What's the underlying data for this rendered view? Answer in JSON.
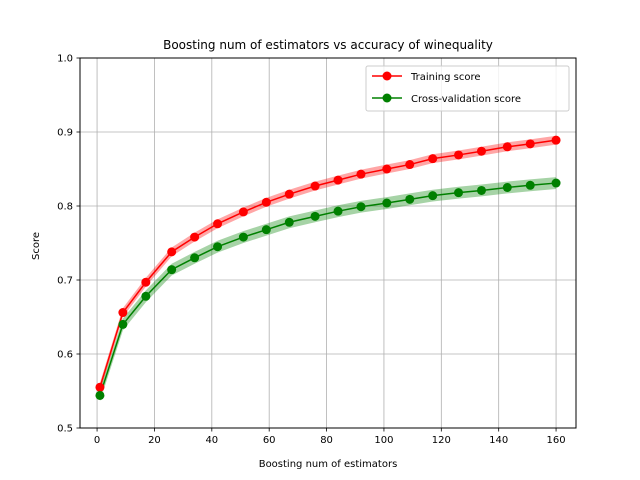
{
  "chart_data": {
    "type": "line",
    "title": "Boosting num of estimators vs accuracy of winequality",
    "xlabel": "Boosting num of estimators",
    "ylabel": "Score",
    "xlim": [
      -5.95,
      166.95
    ],
    "ylim": [
      0.5,
      1.0
    ],
    "xticks": [
      0,
      20,
      40,
      60,
      80,
      100,
      120,
      140,
      160
    ],
    "yticks": [
      0.5,
      0.6,
      0.7,
      0.8,
      0.9,
      1.0
    ],
    "xtick_labels": [
      "0",
      "20",
      "40",
      "60",
      "80",
      "100",
      "120",
      "140",
      "160"
    ],
    "ytick_labels": [
      "0.5",
      "0.6",
      "0.7",
      "0.8",
      "0.9",
      "1.0"
    ],
    "grid": true,
    "legend_position": "top-right",
    "x": [
      1,
      9,
      17,
      26,
      34,
      42,
      51,
      59,
      67,
      76,
      84,
      92,
      101,
      109,
      117,
      126,
      134,
      143,
      151,
      160
    ],
    "series": [
      {
        "name": "Training score",
        "color": "#ff0000",
        "values": [
          0.555,
          0.656,
          0.697,
          0.738,
          0.758,
          0.776,
          0.792,
          0.805,
          0.816,
          0.827,
          0.835,
          0.843,
          0.85,
          0.856,
          0.864,
          0.869,
          0.874,
          0.88,
          0.884,
          0.889
        ],
        "band": 0.006
      },
      {
        "name": "Cross-validation score",
        "color": "#008000",
        "values": [
          0.544,
          0.64,
          0.678,
          0.714,
          0.73,
          0.745,
          0.758,
          0.768,
          0.778,
          0.786,
          0.793,
          0.799,
          0.804,
          0.809,
          0.814,
          0.818,
          0.821,
          0.825,
          0.828,
          0.831
        ],
        "band": 0.008
      }
    ]
  }
}
